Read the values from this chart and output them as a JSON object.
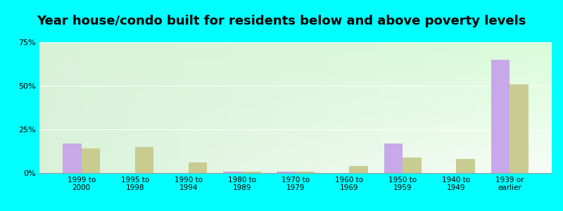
{
  "title": "Year house/condo built for residents below and above poverty levels",
  "categories": [
    "1999 to\n2000",
    "1995 to\n1998",
    "1990 to\n1994",
    "1980 to\n1989",
    "1970 to\n1979",
    "1960 to\n1969",
    "1950 to\n1959",
    "1940 to\n1949",
    "1939 or\nearlier"
  ],
  "below_poverty": [
    17,
    0,
    0,
    1,
    1,
    0,
    17,
    0,
    65
  ],
  "above_poverty": [
    14,
    15,
    6,
    1,
    1,
    4,
    9,
    8,
    51
  ],
  "below_color": "#c8a8e8",
  "above_color": "#c8cc90",
  "background_color": "#00ffff",
  "ylim": [
    0,
    75
  ],
  "yticks": [
    0,
    25,
    50,
    75
  ],
  "ytick_labels": [
    "0%",
    "25%",
    "50%",
    "75%"
  ],
  "title_fontsize": 13,
  "bar_width": 0.35
}
